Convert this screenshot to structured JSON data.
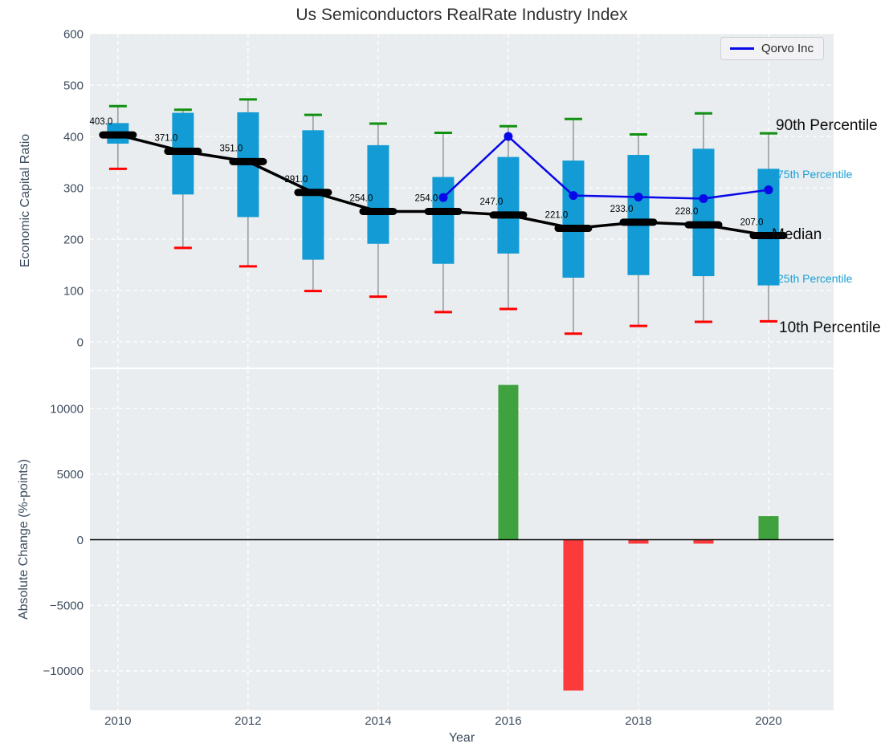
{
  "title": "Us Semiconductors RealRate Industry Index",
  "xlabel": "Year",
  "legend": {
    "label": "Qorvo Inc"
  },
  "xticks": [
    2010,
    2012,
    2014,
    2016,
    2018,
    2020
  ],
  "annotations": {
    "p90": {
      "label": "90th Percentile",
      "color": "#0c0c0c"
    },
    "p75": {
      "label": "75th Percentile",
      "color": "#1a9fd4"
    },
    "median": {
      "label": "Median",
      "color": "#0c0c0c"
    },
    "p25": {
      "label": "25th Percentile",
      "color": "#1a9fd4"
    },
    "p10": {
      "label": "10th Percentile",
      "color": "#0c0c0c"
    }
  },
  "colors": {
    "panel_bg": "#e9edef",
    "grid": "#ffffff",
    "box_fill": "#129bd4",
    "cap_top": "#0f900f",
    "cap_bottom": "#ff0000",
    "whisker": "#808080",
    "median_line": "#000000",
    "qorvo_line": "#0808e8",
    "bar_positive": "#3fa23f",
    "bar_negative": "#fb3b3b",
    "tick_text": "#3d4c5e",
    "zero_line": "#000000"
  },
  "chart_data": [
    {
      "type": "boxplot+line",
      "title": "Us Semiconductors RealRate Industry Index",
      "ylabel": "Economic Capital Ratio",
      "ylim": [
        -50,
        600
      ],
      "yticks": [
        0,
        100,
        200,
        300,
        400,
        500,
        600
      ],
      "x": [
        2010,
        2011,
        2012,
        2013,
        2014,
        2015,
        2016,
        2017,
        2018,
        2019,
        2020
      ],
      "p90": [
        459,
        452,
        472,
        442,
        425,
        407,
        420,
        434,
        404,
        445,
        406
      ],
      "q3": [
        426,
        446,
        447,
        412,
        383,
        321,
        360,
        353,
        364,
        376,
        337
      ],
      "median": [
        403,
        371,
        351,
        291,
        254,
        254,
        247,
        221,
        233,
        228,
        207
      ],
      "q1": [
        386,
        287,
        243,
        160,
        191,
        152,
        172,
        125,
        130,
        128,
        110
      ],
      "p10": [
        337,
        183,
        147,
        99,
        88,
        58,
        64,
        16,
        31,
        39,
        40
      ],
      "median_labels": [
        "403.0",
        "371.0",
        "351.0",
        "291.0",
        "254.0",
        "254.0",
        "247.0",
        "221.0",
        "233.0",
        "228.0",
        "207.0"
      ],
      "series": [
        {
          "name": "Qorvo Inc",
          "x": [
            2015,
            2016,
            2017,
            2018,
            2019,
            2020
          ],
          "y": [
            281,
            400,
            285,
            282,
            279,
            296
          ],
          "color": "#0808e8"
        }
      ],
      "legend_position": "upper right",
      "grid": true
    },
    {
      "type": "bar",
      "ylabel": "Absolute Change (%-points)",
      "xlabel": "Year",
      "ylim": [
        -13000,
        13000
      ],
      "yticks": [
        -10000,
        -5000,
        0,
        5000,
        10000
      ],
      "x": [
        2010,
        2011,
        2012,
        2013,
        2014,
        2015,
        2016,
        2017,
        2018,
        2019,
        2020
      ],
      "values": [
        0,
        0,
        0,
        0,
        0,
        0,
        11800,
        -11500,
        -300,
        -300,
        1800
      ],
      "grid": true
    }
  ]
}
